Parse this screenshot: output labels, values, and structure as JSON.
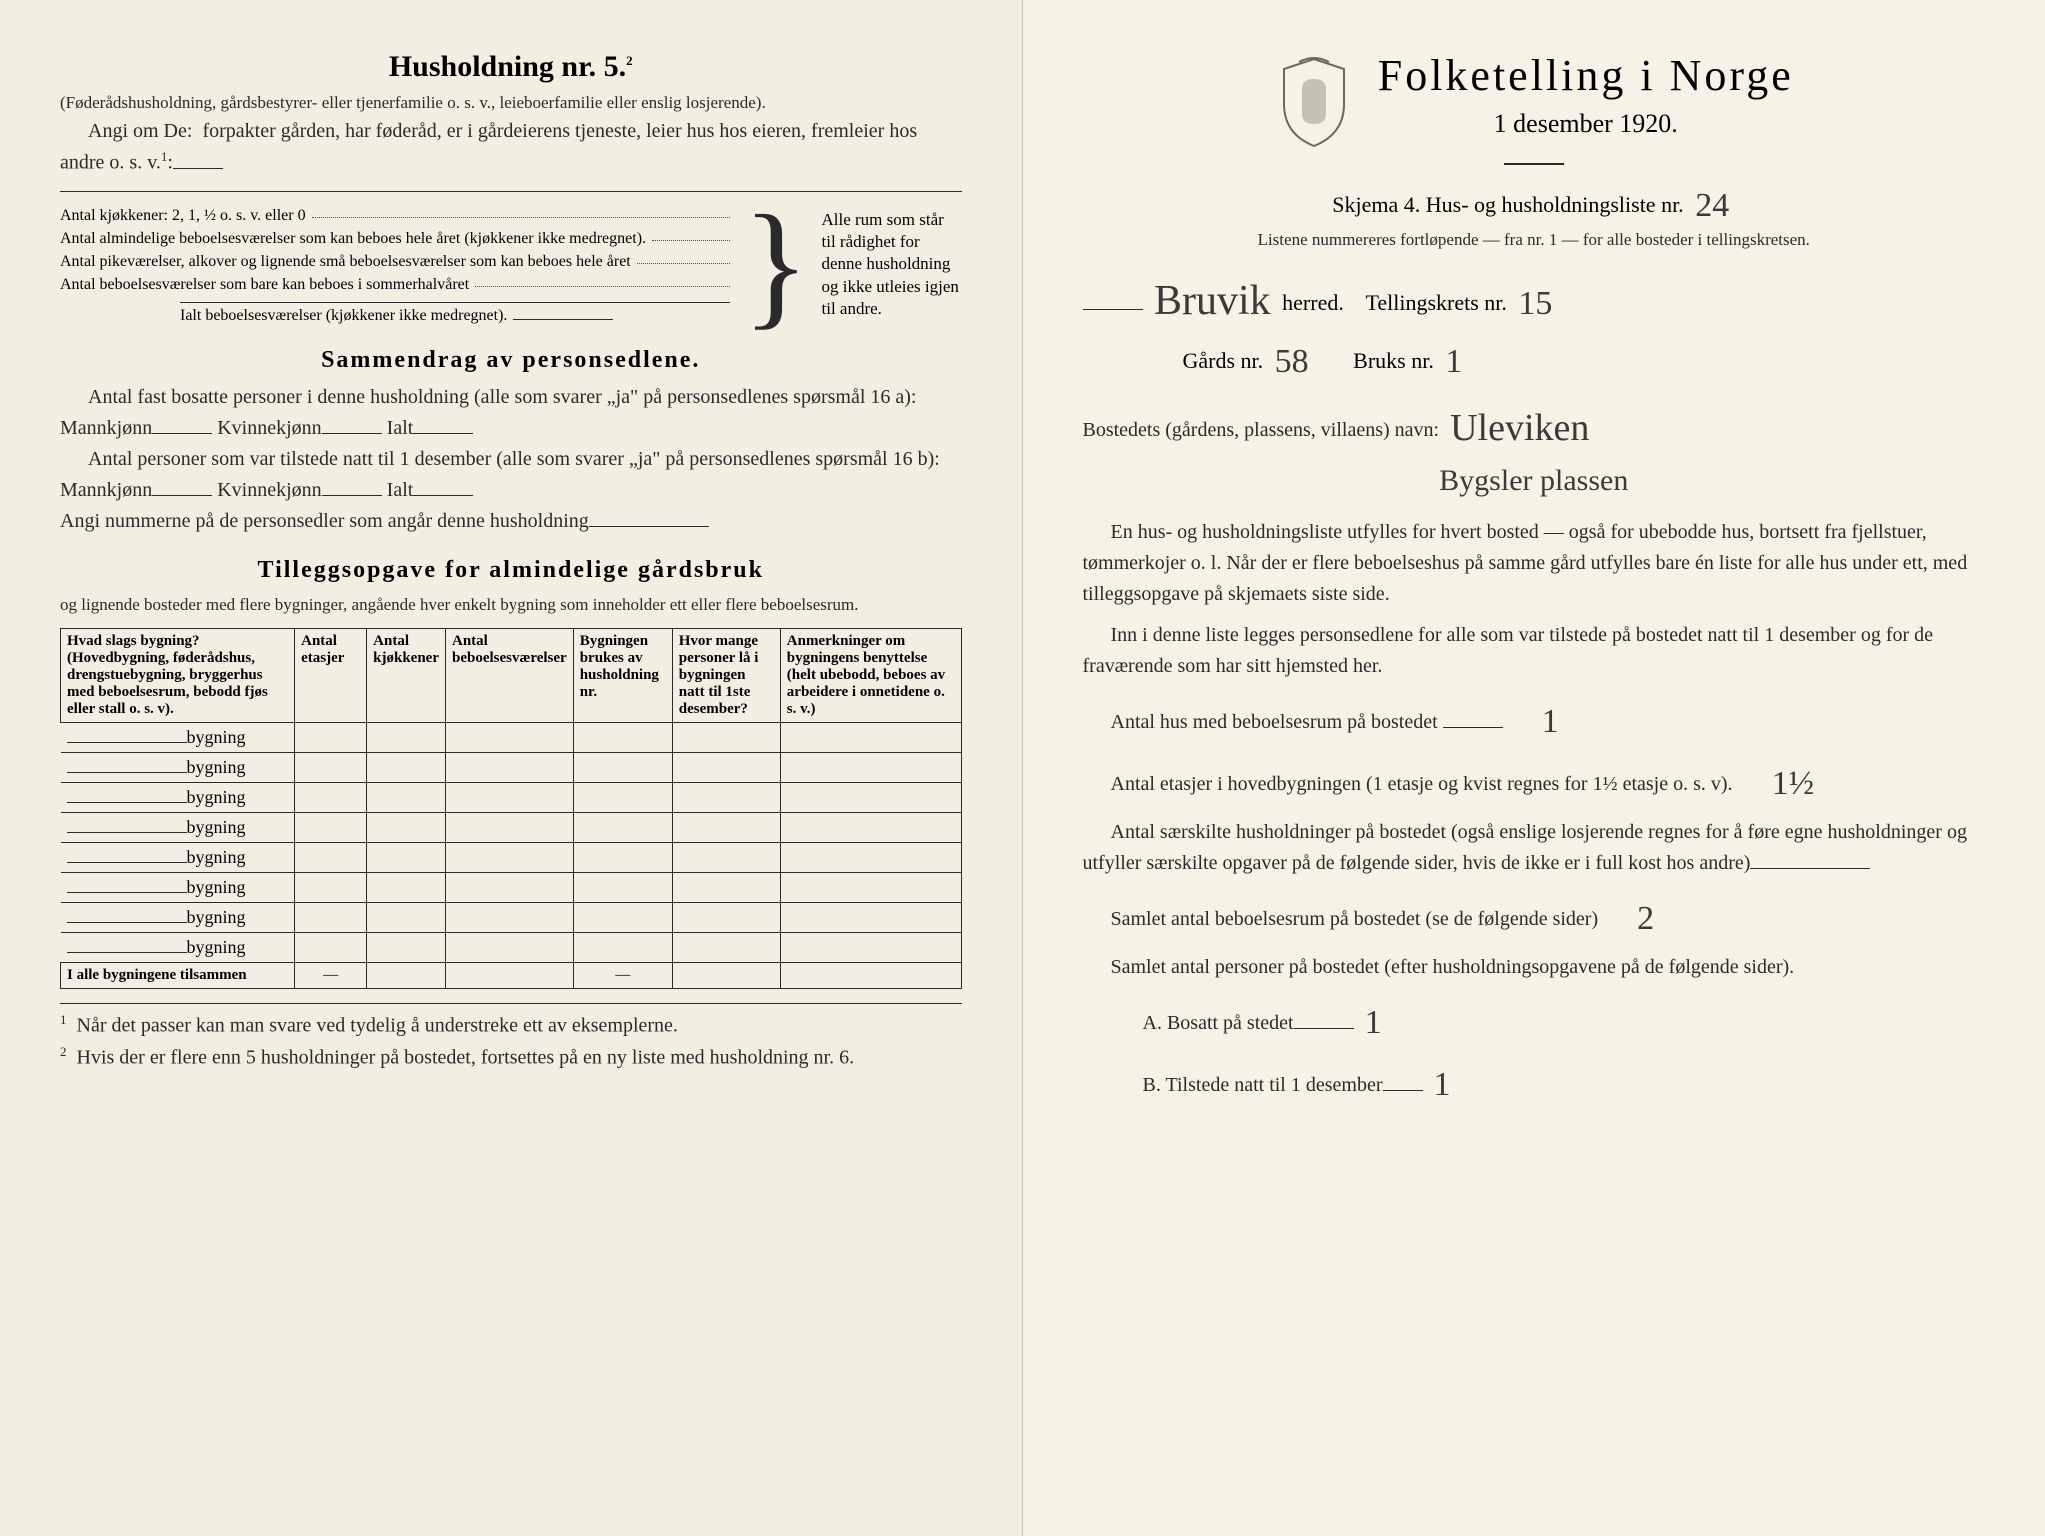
{
  "left": {
    "heading": "Husholdning nr. 5.",
    "heading_sup": "2",
    "para1": "(Føderådshusholdning, gårdsbestyrer- eller tjenerfamilie o. s. v., leieboerfamilie eller enslig losjerende).",
    "para2_lead": "Angi om De:",
    "para2_rest": "forpakter gården, har føderåd, er i gårdeierens tjeneste, leier hus hos eieren, fremleier hos andre o. s. v.",
    "para2_sup": "1",
    "kitchen_line": "Antal kjøkkener: 2, 1, ½ o. s. v. eller 0",
    "room_lines": [
      "Antal almindelige beboelsesværelser som kan beboes hele året (kjøkkener ikke medregnet).",
      "Antal pikeværelser, alkover og lignende små beboelsesværelser som kan beboes hele året",
      "Antal beboelsesværelser som bare kan beboes i sommerhalvåret"
    ],
    "ialt_line": "Ialt beboelsesværelser  (kjøkkener ikke medregnet).",
    "bracket_text": "Alle rum som står til rådighet for denne husholdning og ikke utleies igjen til andre.",
    "sammen_heading": "Sammendrag av personsedlene.",
    "sammen_p1_a": "Antal fast bosatte personer i denne husholdning (alle som svarer „ja\" på personsedlenes spørsmål 16 a): Mannkjønn",
    "sammen_kvinne": "Kvinnekjønn",
    "sammen_ialt": "Ialt",
    "sammen_p2_a": "Antal personer som var tilstede natt til 1 desember (alle som svarer „ja\" på personsedlenes spørsmål 16 b): Mannkjønn",
    "sammen_p3": "Angi nummerne på de personsedler som angår denne husholdning",
    "tillegg_heading": "Tilleggsopgave for almindelige gårdsbruk",
    "tillegg_sub": "og lignende bosteder med flere bygninger, angående hver enkelt bygning som inneholder ett eller flere beboelsesrum.",
    "table_headers": [
      "Hvad slags bygning?\n(Hovedbygning, føderådshus, drengstuebygning, bryggerhus med beboelsesrum, bebodd fjøs eller stall o. s. v).",
      "Antal etasjer",
      "Antal kjøkkener",
      "Antal beboelsesværelser",
      "Bygningen brukes av husholdning nr.",
      "Hvor mange personer lå i bygningen natt til 1ste desember?",
      "Anmerkninger om bygningens benyttelse (helt ubebodd, beboes av arbeidere i onnetidene o. s. v.)"
    ],
    "bygning_label": "bygning",
    "bygning_rows": 8,
    "summary_row": "I alle bygningene tilsammen",
    "footnote1": "Når det passer kan man svare ved tydelig å understreke ett av eksemplerne.",
    "footnote2": "Hvis der er flere enn 5 husholdninger på bostedet, fortsettes på en ny liste med husholdning nr. 6."
  },
  "right": {
    "title": "Folketelling i Norge",
    "subtitle": "1 desember 1920.",
    "skjema": "Skjema 4.   Hus- og husholdningsliste nr.",
    "skjema_nr": "24",
    "listene": "Listene nummereres fortløpende — fra nr. 1 — for alle bosteder i tellingskretsen.",
    "herred_value": "Bruvik",
    "herred_label": "herred.",
    "tellingkrets_label": "Tellingskrets nr.",
    "tellingkrets_nr": "15",
    "gards_label": "Gårds nr.",
    "gards_nr": "58",
    "bruks_label": "Bruks nr.",
    "bruks_nr": "1",
    "bosted_label": "Bostedets (gårdens, plassens, villaens) navn:",
    "bosted_value": "Uleviken",
    "bygsler_value": "Bygsler plassen",
    "para_a": "En hus- og husholdningsliste utfylles for hvert bosted — også for ubebodde hus, bortsett fra fjellstuer, tømmerkojer o. l.  Når der er flere beboelseshus på samme gård utfylles bare én liste for alle hus under ett, med tilleggsopgave på skjemaets siste side.",
    "para_b": "Inn i denne liste legges personsedlene for alle som var tilstede på bostedet natt til 1 desember og for de fraværende som har sitt hjemsted her.",
    "q1": "Antal hus med beboelsesrum på bostedet",
    "q1_val": "1",
    "q2_a": "Antal etasjer i hovedbygningen (1 etasje og kvist regnes for 1½ etasje o. s. v).",
    "q2_val": "1½",
    "q3": "Antal særskilte husholdninger på bostedet (også enslige losjerende regnes for å føre egne husholdninger og utfyller særskilte opgaver på de følgende sider, hvis de ikke er i full kost hos andre)",
    "q4": "Samlet antal beboelsesrum på bostedet (se de følgende sider)",
    "q4_val": "2",
    "q5": "Samlet antal personer på bostedet (efter husholdningsopgavene på de følgende sider).",
    "qA": "A.  Bosatt på stedet",
    "qA_val": "1",
    "qB": "B.  Tilstede natt til 1 desember",
    "qB_val": "1"
  }
}
